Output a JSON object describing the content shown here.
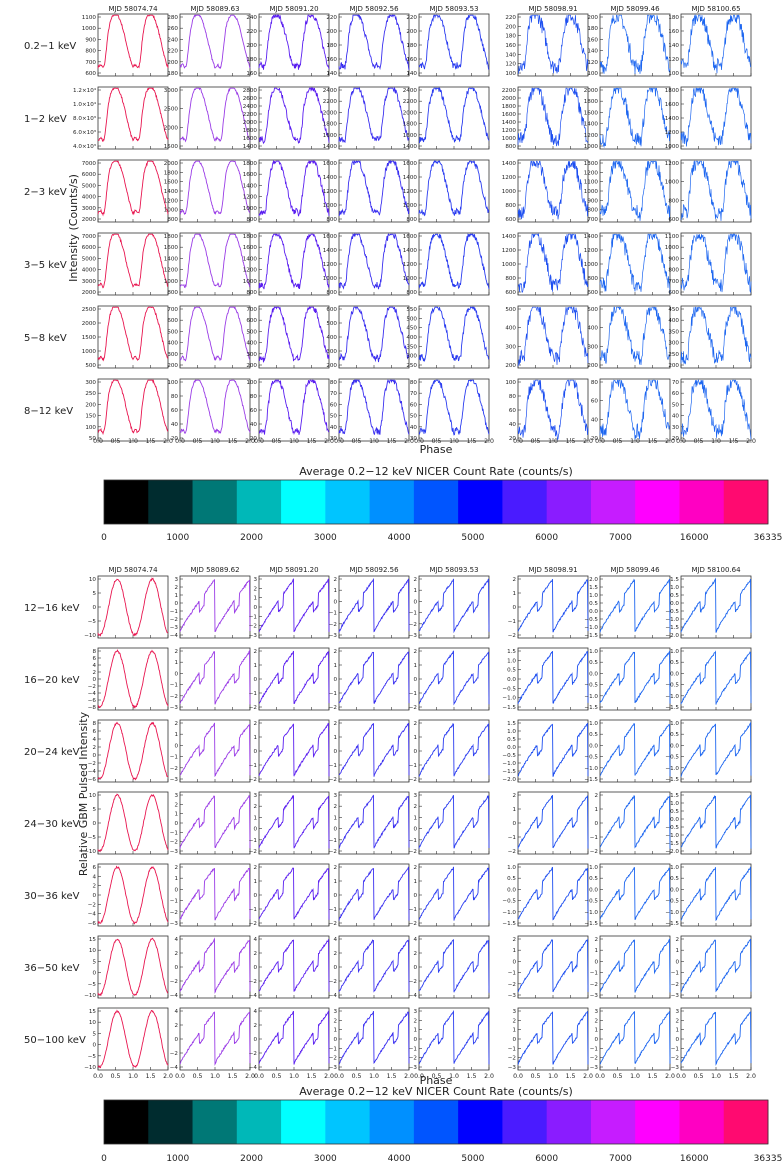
{
  "chart_data": [
    {
      "type": "line",
      "panel_group": "NICER",
      "x_label": "Phase",
      "y_label": "Intensity (Counts/s)",
      "x_ticks": [
        "0.0",
        "0.5",
        "1.0",
        "1.5",
        "2.0"
      ],
      "xlim": [
        0,
        2
      ],
      "columns": [
        {
          "mjd": "MJD 58074.74",
          "color": "#e8154f"
        },
        {
          "mjd": "MJD 58089.63",
          "color": "#9a3ce6"
        },
        {
          "mjd": "MJD 58091.20",
          "color": "#5a1ef0"
        },
        {
          "mjd": "MJD 58092.56",
          "color": "#3a2ff0"
        },
        {
          "mjd": "MJD 58093.53",
          "color": "#2a3cf0"
        },
        {
          "mjd": "MJD 58098.91",
          "color": "#1c4ef0"
        },
        {
          "mjd": "MJD 58099.46",
          "color": "#1d66f0"
        },
        {
          "mjd": "MJD 58100.65",
          "color": "#1d66f0"
        }
      ],
      "rows": [
        {
          "band": "0.2−1 keV",
          "ticks": [
            [
              "1100",
              "1000",
              "900",
              "800",
              "700",
              "600"
            ],
            [
              "280",
              "260",
              "240",
              "220",
              "200",
              "180"
            ],
            [
              "240",
              "220",
              "200",
              "180",
              "160"
            ],
            [
              "220",
              "200",
              "180",
              "160",
              "140"
            ],
            [
              "220",
              "200",
              "180",
              "160",
              "140"
            ],
            [
              "220",
              "200",
              "180",
              "160",
              "140",
              "120",
              "100"
            ],
            [
              "200",
              "180",
              "160",
              "140",
              "120",
              "100"
            ],
            [
              "180",
              "160",
              "140",
              "120",
              "100"
            ]
          ]
        },
        {
          "band": "1−2 keV",
          "ticks": [
            [
              "1.2×10⁴",
              "1.0×10⁴",
              "8.0×10³",
              "6.0×10³",
              "4.0×10³"
            ],
            [
              "3000",
              "2500",
              "2000",
              "1500"
            ],
            [
              "2800",
              "2600",
              "2400",
              "2200",
              "2000",
              "1800",
              "1600",
              "1400"
            ],
            [
              "2400",
              "2200",
              "2000",
              "1800",
              "1600",
              "1400"
            ],
            [
              "2400",
              "2200",
              "2000",
              "1800",
              "1600",
              "1400"
            ],
            [
              "2200",
              "2000",
              "1800",
              "1600",
              "1400",
              "1200",
              "1000",
              "800"
            ],
            [
              "2000",
              "1800",
              "1600",
              "1400",
              "1200",
              "1000"
            ],
            [
              "1800",
              "1600",
              "1400",
              "1200",
              "1000"
            ]
          ]
        },
        {
          "band": "2−3 keV",
          "ticks": [
            [
              "7000",
              "6000",
              "5000",
              "4000",
              "3000",
              "2000"
            ],
            [
              "2000",
              "1800",
              "1600",
              "1400",
              "1200",
              "1000",
              "800"
            ],
            [
              "1800",
              "1600",
              "1400",
              "1200",
              "1000",
              "800"
            ],
            [
              "1600",
              "1400",
              "1200",
              "1000",
              "800"
            ],
            [
              "1600",
              "1400",
              "1200",
              "1000",
              "800"
            ],
            [
              "1400",
              "1200",
              "1000",
              "800",
              "600"
            ],
            [
              "1300",
              "1200",
              "1100",
              "1000",
              "900",
              "800",
              "700"
            ],
            [
              "1200",
              "1000",
              "800",
              "600"
            ]
          ]
        },
        {
          "band": "3−5 keV",
          "ticks": [
            [
              "7000",
              "6000",
              "5000",
              "4000",
              "3000",
              "2000"
            ],
            [
              "1800",
              "1600",
              "1400",
              "1200",
              "1000",
              "800"
            ],
            [
              "1800",
              "1600",
              "1400",
              "1200",
              "1000",
              "800"
            ],
            [
              "1600",
              "1400",
              "1200",
              "1000",
              "800"
            ],
            [
              "1600",
              "1400",
              "1200",
              "1000",
              "800"
            ],
            [
              "1400",
              "1200",
              "1000",
              "800",
              "600"
            ],
            [
              "1400",
              "1200",
              "1000",
              "800",
              "600"
            ],
            [
              "1100",
              "1000",
              "900",
              "800",
              "700",
              "600"
            ]
          ]
        },
        {
          "band": "5−8 keV",
          "ticks": [
            [
              "2500",
              "2000",
              "1500",
              "1000",
              "500"
            ],
            [
              "700",
              "600",
              "500",
              "400",
              "300",
              "200"
            ],
            [
              "700",
              "600",
              "500",
              "400",
              "300",
              "200"
            ],
            [
              "600",
              "500",
              "400",
              "300",
              "200"
            ],
            [
              "550",
              "500",
              "450",
              "400",
              "350",
              "300",
              "250"
            ],
            [
              "500",
              "400",
              "300",
              "200"
            ],
            [
              "500",
              "400",
              "300",
              "200"
            ],
            [
              "450",
              "400",
              "350",
              "300",
              "250",
              "200"
            ]
          ]
        },
        {
          "band": "8−12 keV",
          "ticks": [
            [
              "300",
              "250",
              "200",
              "150",
              "100",
              "50"
            ],
            [
              "100",
              "80",
              "60",
              "40",
              "20"
            ],
            [
              "100",
              "80",
              "60",
              "40",
              "20"
            ],
            [
              "80",
              "70",
              "60",
              "50",
              "40",
              "30"
            ],
            [
              "80",
              "70",
              "60",
              "50",
              "40",
              "30"
            ],
            [
              "100",
              "80",
              "60",
              "40",
              "20"
            ],
            [
              "80",
              "60",
              "40",
              "20"
            ],
            [
              "70",
              "60",
              "50",
              "40",
              "30",
              "20"
            ]
          ]
        }
      ]
    },
    {
      "type": "line",
      "panel_group": "GBM",
      "x_label": "Phase",
      "y_label": "Relative GBM Pulsed Intensity",
      "x_ticks": [
        "0.0",
        "0.5",
        "1.0",
        "1.5",
        "2.0"
      ],
      "xlim": [
        0,
        2
      ],
      "columns": [
        {
          "mjd": "MJD 58074.74",
          "color": "#e8154f"
        },
        {
          "mjd": "MJD 58089.62",
          "color": "#9a3ce6"
        },
        {
          "mjd": "MJD 58091.20",
          "color": "#5a1ef0"
        },
        {
          "mjd": "MJD 58092.56",
          "color": "#3a2ff0"
        },
        {
          "mjd": "MJD 58093.53",
          "color": "#2a3cf0"
        },
        {
          "mjd": "MJD 58098.91",
          "color": "#1c4ef0"
        },
        {
          "mjd": "MJD 58099.46",
          "color": "#1d66f0"
        },
        {
          "mjd": "MJD 58100.64",
          "color": "#1d66f0"
        }
      ],
      "rows": [
        {
          "band": "12−16 keV",
          "ticks": [
            [
              "10",
              "5",
              "0",
              "−5",
              "−10"
            ],
            [
              "3",
              "2",
              "1",
              "0",
              "−1",
              "−2",
              "−3",
              "−4"
            ],
            [
              "3",
              "2",
              "1",
              "0",
              "−1",
              "−2",
              "−3"
            ],
            [
              "2",
              "1",
              "0",
              "−1",
              "−2",
              "−3"
            ],
            [
              "2",
              "1",
              "0",
              "−1",
              "−2",
              "−3"
            ],
            [
              "2",
              "1",
              "0",
              "−1",
              "−2"
            ],
            [
              "2.0",
              "1.5",
              "1.0",
              "0.5",
              "0.0",
              "−0.5",
              "−1.0",
              "−1.5"
            ],
            [
              "1.5",
              "1.0",
              "0.5",
              "0.0",
              "−0.5",
              "−1.0",
              "−1.5",
              "−2.0"
            ]
          ]
        },
        {
          "band": "16−20 keV",
          "ticks": [
            [
              "8",
              "6",
              "4",
              "2",
              "0",
              "−2",
              "−4",
              "−6",
              "−8"
            ],
            [
              "2",
              "1",
              "0",
              "−1",
              "−2",
              "−3"
            ],
            [
              "2",
              "1",
              "0",
              "−1",
              "−2"
            ],
            [
              "2",
              "1",
              "0",
              "−1",
              "−2"
            ],
            [
              "2",
              "1",
              "0",
              "−1",
              "−2"
            ],
            [
              "1.5",
              "1.0",
              "0.5",
              "0.0",
              "−0.5",
              "−1.0",
              "−1.5"
            ],
            [
              "1.0",
              "0.5",
              "0.0",
              "−0.5",
              "−1.0",
              "−1.5"
            ],
            [
              "1.0",
              "0.5",
              "0.0",
              "−0.5",
              "−1.0",
              "−1.5"
            ]
          ]
        },
        {
          "band": "20−24 keV",
          "ticks": [
            [
              "8",
              "6",
              "4",
              "2",
              "0",
              "−2",
              "−4",
              "−6"
            ],
            [
              "2",
              "1",
              "0",
              "−1",
              "−2",
              "−3"
            ],
            [
              "2",
              "1",
              "0",
              "−1",
              "−2"
            ],
            [
              "2",
              "1",
              "0",
              "−1",
              "−2"
            ],
            [
              "2",
              "1",
              "0",
              "−1",
              "−2"
            ],
            [
              "1.5",
              "1.0",
              "0.5",
              "0.0",
              "−0.5",
              "−1.0",
              "−1.5",
              "−2.0"
            ],
            [
              "1.0",
              "0.5",
              "0.0",
              "−0.5",
              "−1.0",
              "−1.5"
            ],
            [
              "1.0",
              "0.5",
              "0.0",
              "−0.5",
              "−1.0",
              "−1.5"
            ]
          ]
        },
        {
          "band": "24−30 keV",
          "ticks": [
            [
              "10",
              "5",
              "0",
              "−5",
              "−10"
            ],
            [
              "3",
              "2",
              "1",
              "0",
              "−1",
              "−2",
              "−3"
            ],
            [
              "3",
              "2",
              "1",
              "0",
              "−1",
              "−2"
            ],
            [
              "3",
              "2",
              "1",
              "0",
              "−1",
              "−2"
            ],
            [
              "3",
              "2",
              "1",
              "0",
              "−1",
              "−2"
            ],
            [
              "2",
              "1",
              "0",
              "−1",
              "−2"
            ],
            [
              "2",
              "1",
              "0",
              "−1",
              "−2"
            ],
            [
              "1.5",
              "1.0",
              "0.5",
              "0.0",
              "−0.5",
              "−1.0",
              "−1.5",
              "−2.0"
            ]
          ]
        },
        {
          "band": "30−36 keV",
          "ticks": [
            [
              "6",
              "4",
              "2",
              "0",
              "−2",
              "−4",
              "−6"
            ],
            [
              "2",
              "1",
              "0",
              "−1",
              "−2",
              "−3"
            ],
            [
              "2",
              "1",
              "0",
              "−1",
              "−2"
            ],
            [
              "2",
              "1",
              "0",
              "−1",
              "−2"
            ],
            [
              "2",
              "1",
              "0",
              "−1",
              "−2"
            ],
            [
              "1.0",
              "0.5",
              "0.0",
              "−0.5",
              "−1.0",
              "−1.5"
            ],
            [
              "1.0",
              "0.5",
              "0.0",
              "−0.5",
              "−1.0",
              "−1.5"
            ],
            [
              "1.0",
              "0.5",
              "0.0",
              "−0.5",
              "−1.0",
              "−1.5"
            ]
          ]
        },
        {
          "band": "36−50 keV",
          "ticks": [
            [
              "15",
              "10",
              "5",
              "0",
              "−5",
              "−10"
            ],
            [
              "4",
              "2",
              "0",
              "−2",
              "−4"
            ],
            [
              "4",
              "2",
              "0",
              "−2",
              "−4"
            ],
            [
              "4",
              "2",
              "0",
              "−2",
              "−4"
            ],
            [
              "4",
              "2",
              "0",
              "−2",
              "−4"
            ],
            [
              "2",
              "1",
              "0",
              "−1",
              "−2",
              "−3"
            ],
            [
              "2",
              "1",
              "0",
              "−1",
              "−2",
              "−3"
            ],
            [
              "2",
              "1",
              "0",
              "−1",
              "−2",
              "−3"
            ]
          ]
        },
        {
          "band": "50−100 keV",
          "ticks": [
            [
              "15",
              "10",
              "5",
              "0",
              "−5",
              "−10"
            ],
            [
              "4",
              "2",
              "0",
              "−2",
              "−4"
            ],
            [
              "4",
              "2",
              "0",
              "−2",
              "−4"
            ],
            [
              "3",
              "2",
              "1",
              "0",
              "−1",
              "−2",
              "−3"
            ],
            [
              "3",
              "2",
              "1",
              "0",
              "−1",
              "−2",
              "−3"
            ],
            [
              "3",
              "2",
              "1",
              "0",
              "−1",
              "−2",
              "−3"
            ],
            [
              "3",
              "2",
              "1",
              "0",
              "−1",
              "−2",
              "−3"
            ],
            [
              "3",
              "2",
              "1",
              "0",
              "−1",
              "−2",
              "−3"
            ]
          ]
        }
      ]
    }
  ],
  "colorbar": {
    "title": "Average 0.2−12 keV NICER Count Rate (counts/s)",
    "colors": [
      "#000000",
      "#002c2f",
      "#007876",
      "#00b8b8",
      "#00ffff",
      "#00c5ff",
      "#0090ff",
      "#0055ff",
      "#0000ff",
      "#4a1bff",
      "#8a1cff",
      "#c61cff",
      "#ff00ff",
      "#ff00c2",
      "#ff0a70"
    ],
    "tick_labels": [
      "0",
      "1000",
      "2000",
      "3000",
      "4000",
      "5000",
      "6000",
      "7000",
      "16000",
      "36335"
    ]
  }
}
